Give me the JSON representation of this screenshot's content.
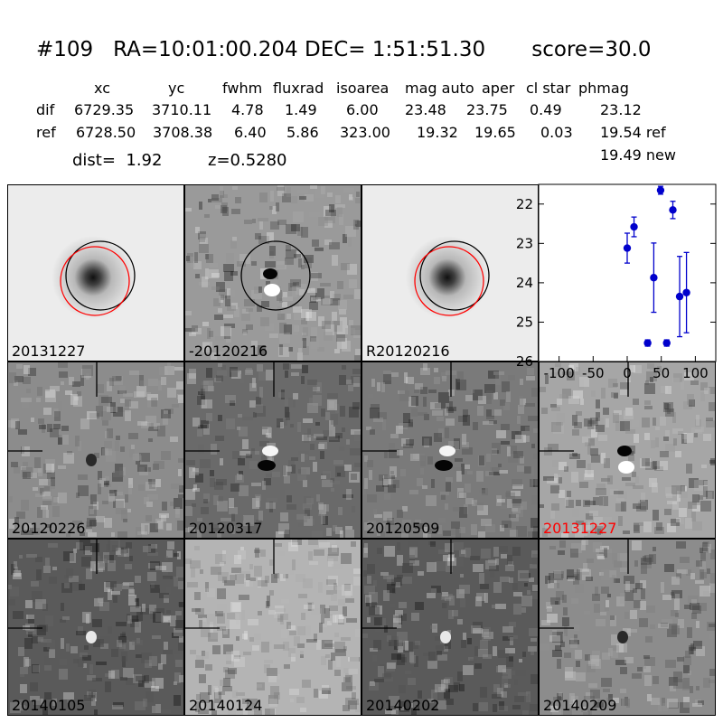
{
  "header": {
    "title": "#109   RA=10:01:00.204 DEC= 1:51:51.30       score=30.0",
    "columns": [
      "xc",
      "yc",
      "fwhm",
      "fluxrad",
      "isoarea",
      "mag auto",
      "aper",
      "cl star",
      "phmag"
    ],
    "rows": [
      {
        "label": "dif",
        "values": [
          "6729.35",
          "3710.11",
          "4.78",
          "1.49",
          "6.00",
          "23.48",
          "23.75",
          "0.49",
          "23.12"
        ]
      },
      {
        "label": "ref",
        "values": [
          "6728.50",
          "3708.38",
          "6.40",
          "5.86",
          "323.00",
          "19.32",
          "19.65",
          "0.03",
          "19.54 ref"
        ]
      }
    ],
    "phmag_new": "19.49 new",
    "dist_text": "dist=  1.92",
    "z_text": "z=0.5280"
  },
  "panels": [
    {
      "label": "20131227",
      "label_color": "#000000",
      "kind": "galaxy",
      "circles": "both"
    },
    {
      "label": "-20120216",
      "label_color": "#000000",
      "kind": "diff-dipole",
      "circles": "black"
    },
    {
      "label": "R20120216",
      "label_color": "#000000",
      "kind": "galaxy",
      "circles": "both"
    },
    {
      "label": "20120226",
      "label_color": "#000000",
      "kind": "noise"
    },
    {
      "label": "20120317",
      "label_color": "#000000",
      "kind": "dipole-dark"
    },
    {
      "label": "20120509",
      "label_color": "#000000",
      "kind": "dipole"
    },
    {
      "label": "20131227",
      "label_color": "#ff0000",
      "kind": "dipole-rev"
    },
    {
      "label": "20140105",
      "label_color": "#000000",
      "kind": "point"
    },
    {
      "label": "20140124",
      "label_color": "#000000",
      "kind": "noise-light"
    },
    {
      "label": "20140202",
      "label_color": "#000000",
      "kind": "point"
    },
    {
      "label": "20140209",
      "label_color": "#000000",
      "kind": "noise"
    }
  ],
  "chart_data": {
    "type": "scatter",
    "xlim": [
      -130,
      130
    ],
    "ylim": [
      26,
      21.5
    ],
    "x_ticks": [
      "-100",
      "-50",
      "0",
      "50",
      "100"
    ],
    "x_tick_values": [
      -100,
      -50,
      0,
      50,
      100
    ],
    "y_ticks": [
      "22",
      "23",
      "24",
      "25",
      "26"
    ],
    "y_tick_values": [
      22,
      23,
      24,
      25,
      26
    ],
    "marker_color": "#0000cc",
    "points": [
      {
        "x": 0,
        "y": 23.12,
        "err": 0.38
      },
      {
        "x": 10,
        "y": 22.58,
        "err": 0.25
      },
      {
        "x": 30,
        "y": 25.53,
        "err": 0.08
      },
      {
        "x": 39,
        "y": 23.87,
        "err": 0.88
      },
      {
        "x": 49,
        "y": 21.65,
        "err": 0.1
      },
      {
        "x": 58,
        "y": 25.53,
        "err": 0.08
      },
      {
        "x": 67,
        "y": 22.15,
        "err": 0.22
      },
      {
        "x": 77,
        "y": 24.35,
        "err": 1.02
      },
      {
        "x": 87,
        "y": 24.25,
        "err": 1.02
      }
    ]
  }
}
